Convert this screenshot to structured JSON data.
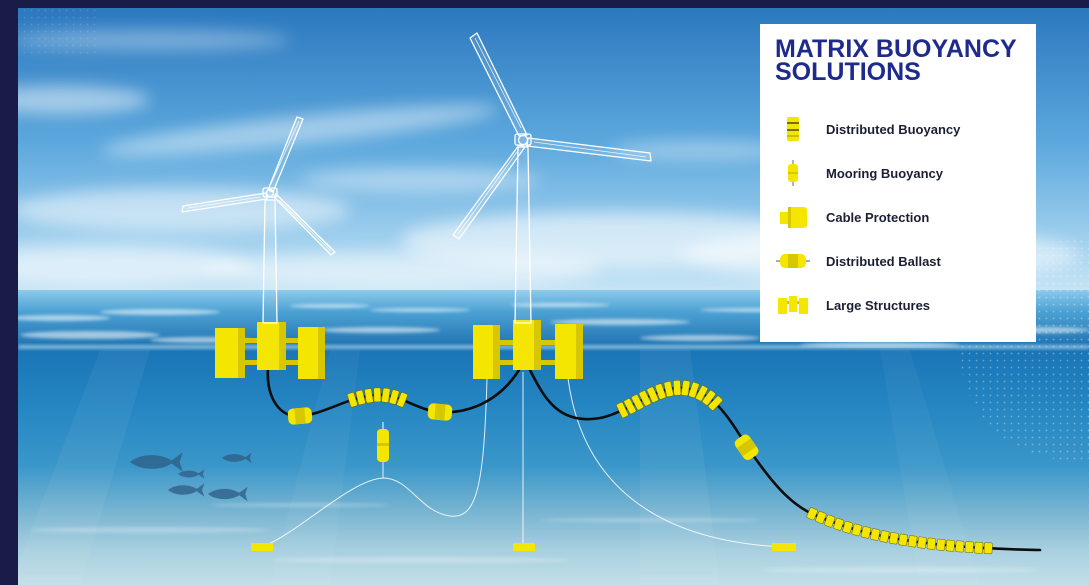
{
  "legend": {
    "title_line_1": "MATRIX BUOYANCY",
    "title_line_2": "SOLUTIONS",
    "items": [
      {
        "label": "Distributed Buoyancy",
        "icon": "distributed-buoyancy-icon"
      },
      {
        "label": "Mooring Buoyancy",
        "icon": "mooring-buoyancy-icon"
      },
      {
        "label": "Cable Protection",
        "icon": "cable-protection-icon"
      },
      {
        "label": "Distributed Ballast",
        "icon": "distributed-ballast-icon"
      },
      {
        "label": "Large Structures",
        "icon": "large-structures-icon"
      }
    ]
  },
  "colors": {
    "frame": "#181c46",
    "title": "#1f2b8c",
    "product_yellow": "#f4e600",
    "product_yellow_shade": "#d6c700",
    "panel": "#ffffff",
    "label": "#1c1f33"
  }
}
